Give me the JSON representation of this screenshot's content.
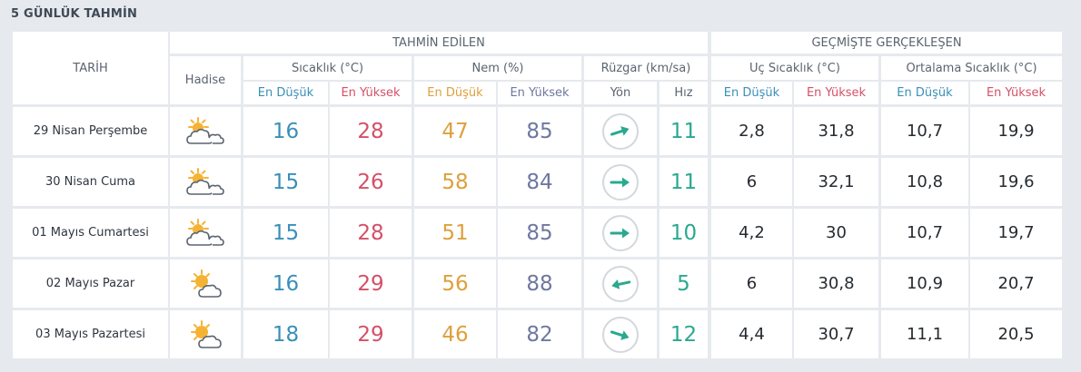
{
  "title": "5 GÜNLÜK TAHMİN",
  "header": {
    "tarih": "TARİH",
    "tahmin": "TAHMİN EDİLEN",
    "gecmis": "GEÇMİŞTE GERÇEKLEŞEN",
    "hadise": "Hadise",
    "sicaklik": "Sıcaklık (°C)",
    "nem": "Nem (%)",
    "ruzgar": "Rüzgar (km/sa)",
    "uc_sicaklik": "Uç Sıcaklık (°C)",
    "ort_sicaklik": "Ortalama Sıcaklık (°C)",
    "en_dusuk": "En Düşük",
    "en_yuksek": "En Yüksek",
    "yon": "Yön",
    "hiz": "Hız"
  },
  "rows": [
    {
      "date": "29 Nisan Perşembe",
      "icon": "partly-cloudy-icon",
      "temp_low": "16",
      "temp_high": "28",
      "hum_low": "47",
      "hum_high": "85",
      "wind_dir": "east-northeast",
      "wind_speed": "11",
      "ext_low": "2,8",
      "ext_high": "31,8",
      "avg_low": "10,7",
      "avg_high": "19,9"
    },
    {
      "date": "30 Nisan Cuma",
      "icon": "partly-cloudy-icon",
      "temp_low": "15",
      "temp_high": "26",
      "hum_low": "58",
      "hum_high": "84",
      "wind_dir": "east",
      "wind_speed": "11",
      "ext_low": "6",
      "ext_high": "32,1",
      "avg_low": "10,8",
      "avg_high": "19,6"
    },
    {
      "date": "01 Mayıs Cumartesi",
      "icon": "partly-cloudy-icon",
      "temp_low": "15",
      "temp_high": "28",
      "hum_low": "51",
      "hum_high": "85",
      "wind_dir": "east",
      "wind_speed": "10",
      "ext_low": "4,2",
      "ext_high": "30",
      "avg_low": "10,7",
      "avg_high": "19,7"
    },
    {
      "date": "02 Mayıs Pazar",
      "icon": "sun-cloud-icon",
      "temp_low": "16",
      "temp_high": "29",
      "hum_low": "56",
      "hum_high": "88",
      "wind_dir": "west-southwest",
      "wind_speed": "5",
      "ext_low": "6",
      "ext_high": "30,8",
      "avg_low": "10,9",
      "avg_high": "20,7"
    },
    {
      "date": "03 Mayıs Pazartesi",
      "icon": "sun-cloud-icon",
      "temp_low": "18",
      "temp_high": "29",
      "hum_low": "46",
      "hum_high": "82",
      "wind_dir": "east-southeast",
      "wind_speed": "12",
      "ext_low": "4,4",
      "ext_high": "30,7",
      "avg_low": "11,1",
      "avg_high": "20,5"
    }
  ],
  "colors": {
    "temp_low": "#3a8fb7",
    "temp_high": "#d45068",
    "hum_low": "#dea03c",
    "hum_high": "#6f77a0",
    "wind": "#2aa98f"
  }
}
